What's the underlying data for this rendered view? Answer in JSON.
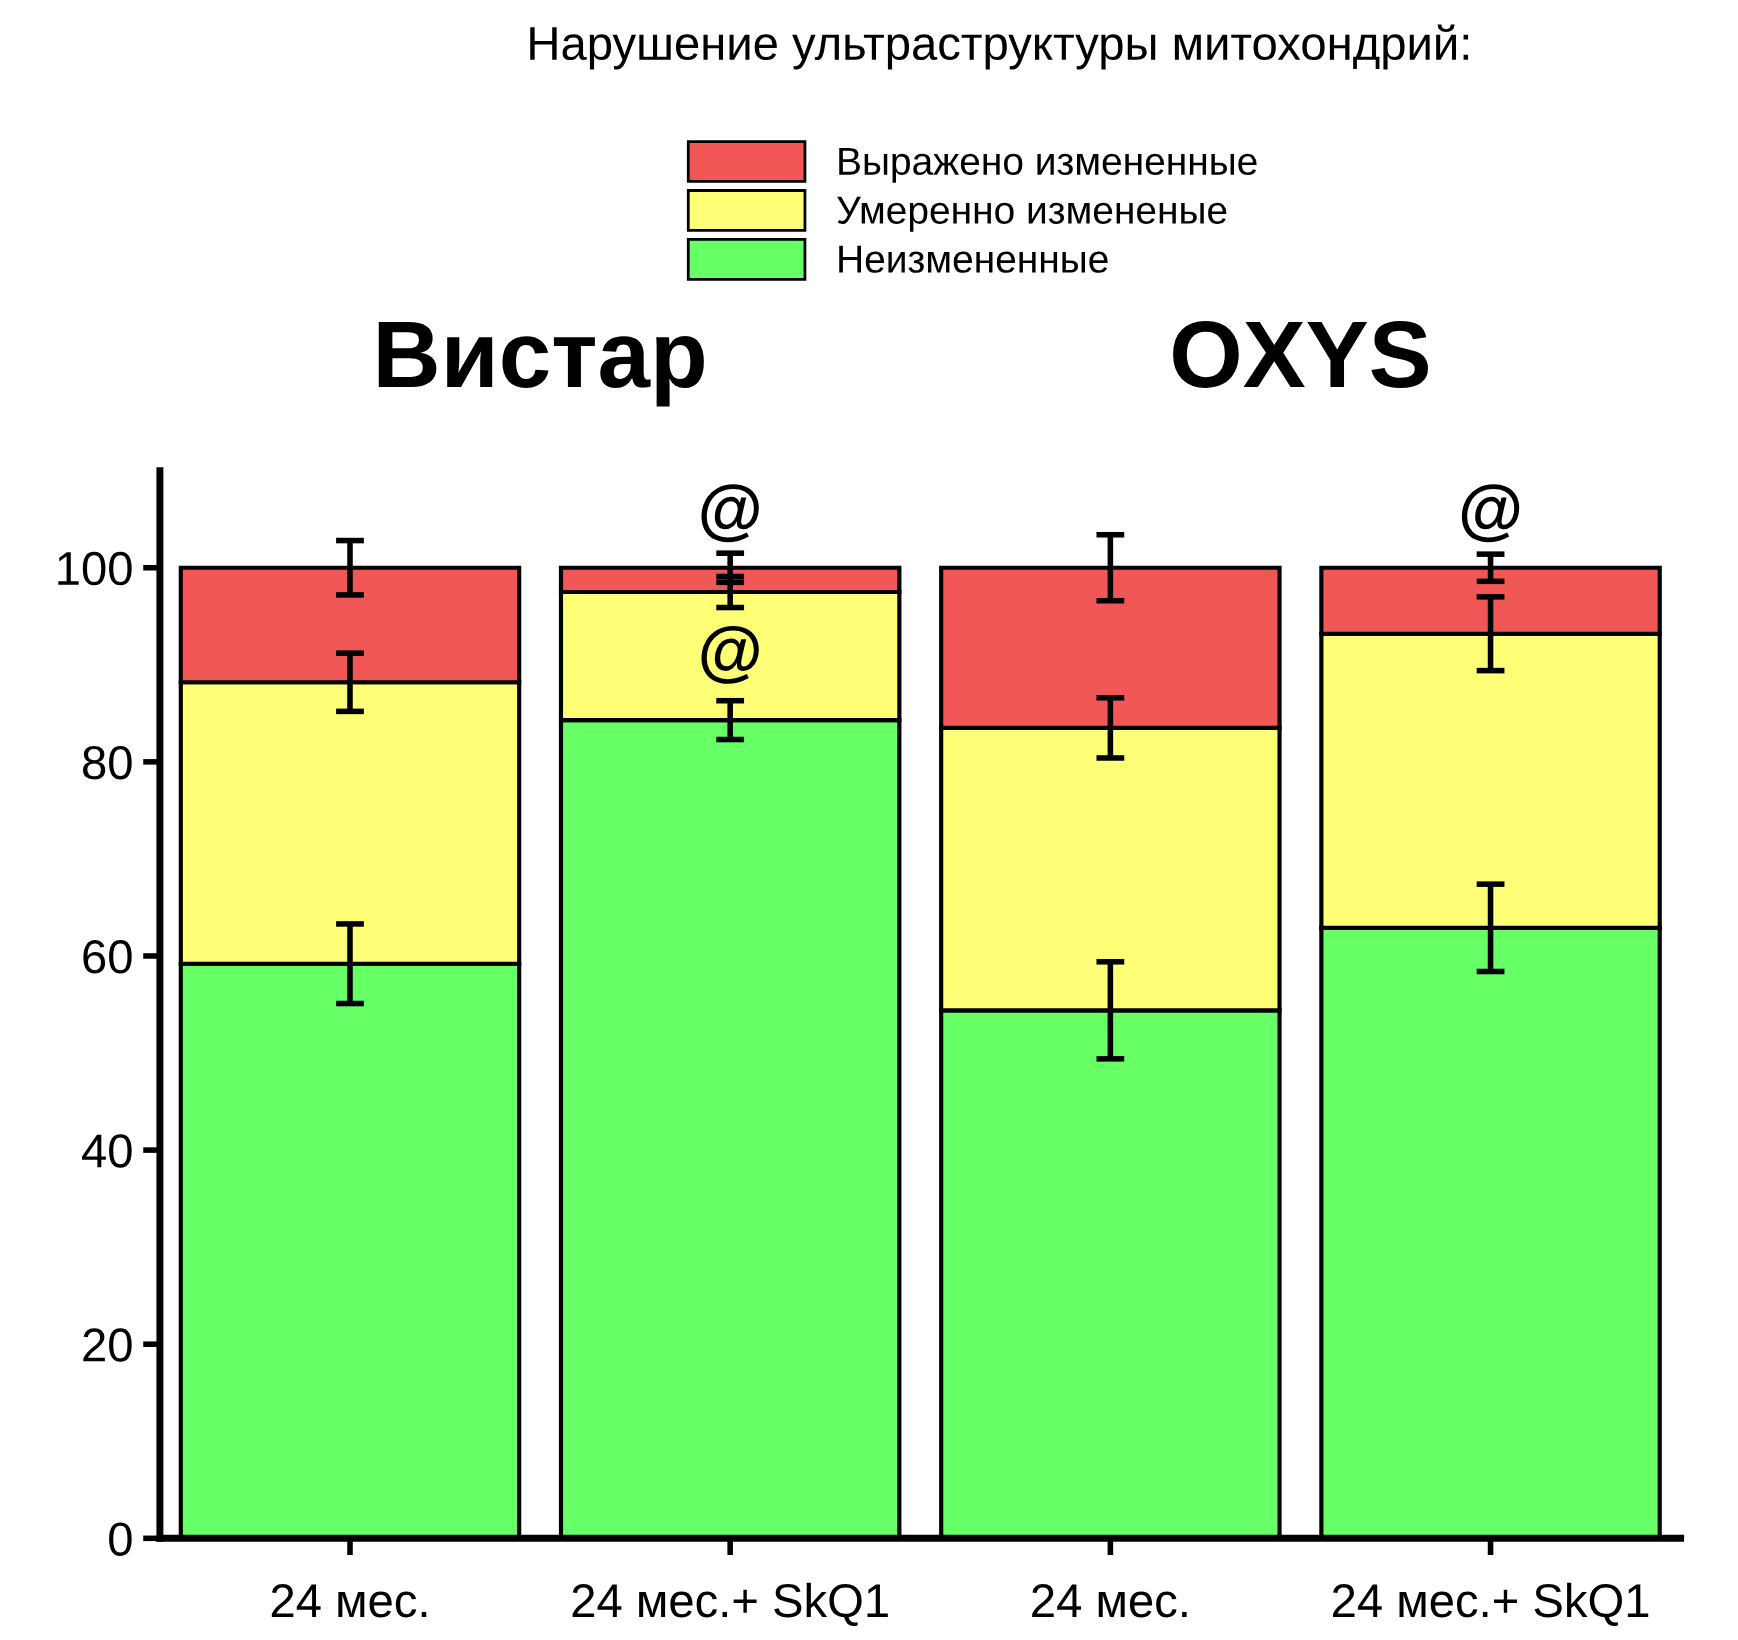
{
  "chart_data": {
    "type": "bar",
    "stacked": true,
    "title": "Нарушение ультраструктуры митохондрий:",
    "categories": [
      "24 мес.",
      "24 мес.+ SkQ1",
      "24 мес.",
      "24 мес.+ SkQ1"
    ],
    "series": [
      {
        "name": "Неизмененные",
        "color": "#66ff66",
        "values": [
          59.2,
          84.3,
          54.4,
          62.9
        ],
        "errors": [
          4.1,
          2,
          5,
          4.5
        ]
      },
      {
        "name": "Умеренно измененые",
        "color": "#ffff77",
        "values": [
          29,
          13.2,
          29.1,
          30.3
        ],
        "errors": [
          3,
          1.6,
          3.1,
          3.8
        ]
      },
      {
        "name": "Выражено измененные",
        "color": "#f25757",
        "values": [
          11.8,
          2.5,
          16.5,
          6.8
        ],
        "errors": [
          2.8,
          1.5,
          3.4,
          1.4
        ]
      }
    ],
    "annotations": [
      "Вистар",
      "OXYS",
      "@",
      "@",
      "@"
    ],
    "ylim": [
      0,
      110
    ],
    "yticks": [
      0,
      20,
      40,
      60,
      80,
      100
    ],
    "grid": false,
    "legend": "top"
  }
}
